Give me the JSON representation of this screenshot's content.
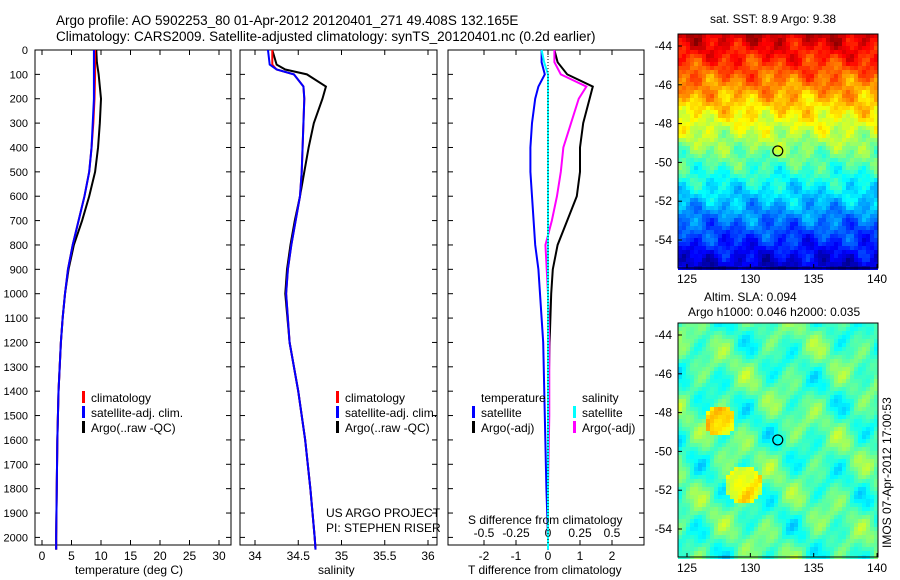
{
  "title_line1": "Argo profile: AO 5902253_80 01-Apr-2012 20120401_271 49.408S 132.165E",
  "title_line2": "Climatology: CARS2009. Satellite-adjusted climatology: synTS_20120401.nc (0.2d earlier)",
  "colors": {
    "climatology": "#ff0000",
    "satellite": "#0000ff",
    "argo": "#000000",
    "sal_sat": "#00ffff",
    "sal_argo": "#ff00ff"
  },
  "chart_data": [
    {
      "type": "line",
      "name": "temperature",
      "xlabel": "temperature (deg C)",
      "ylabel": "depth",
      "xlim": [
        -1,
        31
      ],
      "ylim": [
        2050,
        0
      ],
      "xticks": [
        "0",
        "5",
        "10",
        "15",
        "20",
        "25",
        "30"
      ],
      "yticks": [
        "0",
        "100",
        "200",
        "300",
        "400",
        "500",
        "600",
        "700",
        "800",
        "900",
        "1000",
        "1100",
        "1200",
        "1300",
        "1400",
        "1500",
        "1600",
        "1700",
        "1800",
        "1900",
        "2000"
      ],
      "legend": [
        "climatology",
        "satellite-adj. clim.",
        "Argo(..raw -QC)"
      ],
      "depth": [
        0,
        50,
        100,
        200,
        300,
        400,
        500,
        600,
        700,
        800,
        900,
        1000,
        1100,
        1200,
        1400,
        1600,
        1800,
        2000,
        2050
      ],
      "series": [
        {
          "name": "climatology",
          "values": [
            9.0,
            9.0,
            9.0,
            8.9,
            8.7,
            8.4,
            8.0,
            7.2,
            6.2,
            5.2,
            4.4,
            3.9,
            3.5,
            3.2,
            2.8,
            2.6,
            2.5,
            2.4,
            2.4
          ]
        },
        {
          "name": "satellite-adj. clim.",
          "values": [
            8.8,
            8.8,
            8.8,
            8.8,
            8.6,
            8.4,
            8.0,
            7.2,
            6.2,
            5.2,
            4.4,
            3.9,
            3.5,
            3.2,
            2.8,
            2.6,
            2.5,
            2.4,
            2.4
          ]
        },
        {
          "name": "Argo(..raw -QC)",
          "values": [
            9.2,
            9.3,
            9.6,
            10.0,
            9.8,
            9.5,
            9.0,
            8.0,
            6.8,
            5.4,
            4.5,
            3.9,
            3.5,
            3.2,
            2.8,
            2.6,
            2.5,
            2.4,
            2.4
          ]
        }
      ]
    },
    {
      "type": "line",
      "name": "salinity",
      "xlabel": "salinity",
      "xlim": [
        33.9,
        36.05
      ],
      "ylim": [
        2050,
        0
      ],
      "xticks": [
        "34",
        "34.5",
        "35",
        "35.5",
        "36"
      ],
      "legend": [
        "climatology",
        "satellite-adj. clim.",
        "Argo(..raw -QC)"
      ],
      "annotation": [
        "US ARGO PROJECT",
        "PI: STEPHEN RISER"
      ],
      "depth": [
        0,
        60,
        80,
        100,
        150,
        200,
        300,
        400,
        500,
        600,
        700,
        800,
        900,
        1000,
        1200,
        1400,
        1600,
        1800,
        2000,
        2050
      ],
      "series": [
        {
          "name": "climatology",
          "values": [
            34.2,
            34.2,
            34.25,
            34.45,
            34.56,
            34.57,
            34.56,
            34.55,
            34.54,
            34.52,
            34.47,
            34.42,
            34.38,
            34.36,
            34.4,
            34.5,
            34.58,
            34.64,
            34.69,
            34.7
          ]
        },
        {
          "name": "satellite-adj. clim.",
          "values": [
            34.15,
            34.17,
            34.25,
            34.45,
            34.56,
            34.57,
            34.56,
            34.55,
            34.54,
            34.52,
            34.47,
            34.42,
            34.38,
            34.36,
            34.4,
            34.5,
            34.58,
            34.64,
            34.69,
            34.7
          ]
        },
        {
          "name": "Argo(..raw -QC)",
          "values": [
            34.2,
            34.25,
            34.35,
            34.6,
            34.82,
            34.78,
            34.68,
            34.62,
            34.57,
            34.52,
            34.46,
            34.41,
            34.37,
            34.35,
            34.4,
            34.5,
            34.58,
            34.64,
            34.69,
            34.7
          ]
        }
      ]
    },
    {
      "type": "line",
      "name": "difference",
      "xlabel": "T difference from climatology",
      "x2label": "S difference from climatology",
      "xlim": [
        -2.9,
        3.0
      ],
      "ylim": [
        2050,
        0
      ],
      "xticks": [
        "-2",
        "-1",
        "0",
        "1",
        "2"
      ],
      "x2ticks": [
        "-0.5",
        "-0.25",
        "0",
        "0.25",
        "0.5"
      ],
      "legend_titles": [
        "temperature",
        "salinity"
      ],
      "legend": [
        "satellite",
        "Argo(-adj)",
        "satellite",
        "Argo(-adj)"
      ],
      "depth": [
        0,
        50,
        100,
        150,
        200,
        300,
        400,
        500,
        600,
        700,
        800,
        900,
        1000,
        1200,
        1500,
        1800,
        2000,
        2050
      ],
      "series": [
        {
          "name": "T satellite",
          "values": [
            -0.2,
            -0.2,
            -0.1,
            -0.3,
            -0.4,
            -0.5,
            -0.55,
            -0.55,
            -0.5,
            -0.45,
            -0.4,
            -0.3,
            -0.25,
            -0.15,
            -0.1,
            -0.05,
            0,
            0
          ]
        },
        {
          "name": "T Argo(-adj)",
          "values": [
            0.2,
            0.3,
            0.6,
            1.4,
            1.3,
            1.1,
            1.0,
            1.0,
            0.9,
            0.6,
            0.3,
            0.15,
            0.1,
            0.05,
            0,
            0,
            0,
            0
          ]
        },
        {
          "name": "S satellite",
          "values": [
            -0.05,
            -0.03,
            0,
            0,
            0,
            0,
            0,
            0,
            0,
            0,
            0,
            0,
            0,
            0,
            0,
            0,
            0,
            0
          ]
        },
        {
          "name": "S Argo(-adj)",
          "values": [
            0.05,
            0.05,
            0.1,
            0.3,
            0.24,
            0.18,
            0.12,
            0.1,
            0.07,
            0.03,
            -0.02,
            -0.01,
            0,
            0.01,
            0.01,
            0,
            0,
            0
          ]
        }
      ]
    },
    {
      "type": "heatmap",
      "name": "sst-map",
      "title": "sat. SST: 8.9 Argo: 9.38",
      "xticks": [
        "125",
        "130",
        "135",
        "140"
      ],
      "yticks": [
        "-44",
        "-46",
        "-48",
        "-50",
        "-52",
        "-54"
      ],
      "marker": [
        132.165,
        -49.408
      ]
    },
    {
      "type": "heatmap",
      "name": "sla-map",
      "title": "Altim. SLA: 0.094",
      "subtitle": "Argo h1000: 0.046 h2000: 0.035",
      "xticks": [
        "125",
        "130",
        "135",
        "140"
      ],
      "yticks": [
        "-44",
        "-46",
        "-48",
        "-50",
        "-52",
        "-54"
      ],
      "marker": [
        132.165,
        -49.408
      ]
    }
  ],
  "side_label": "IMOS 07-Apr-2012 17:00:53"
}
